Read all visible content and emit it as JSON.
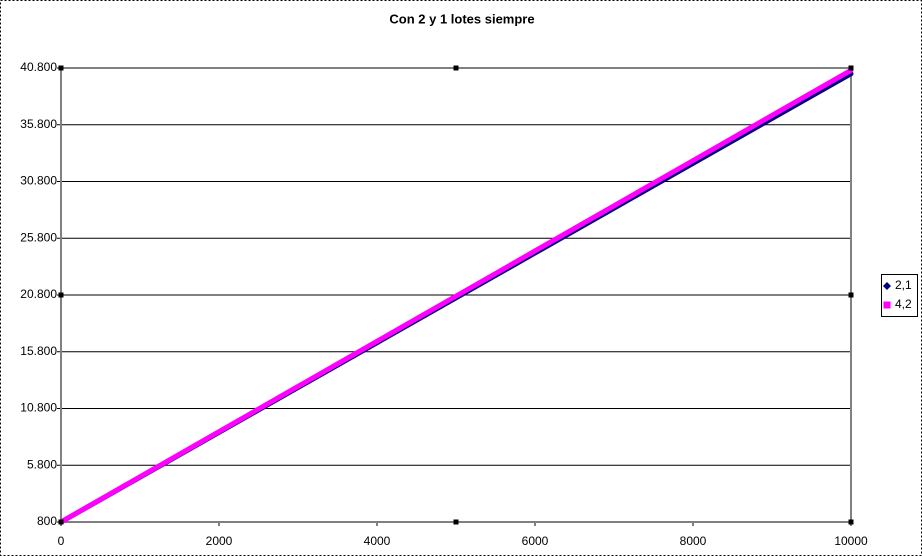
{
  "chart_data": {
    "type": "line",
    "title": "Con 2 y 1 lotes siempre",
    "x": [
      0,
      1000,
      2000,
      3000,
      4000,
      5000,
      6000,
      7000,
      8000,
      9000,
      10000
    ],
    "series": [
      {
        "name": "2,1",
        "color": "#000080",
        "values": [
          800,
          4750,
          8700,
          12650,
          16600,
          20550,
          24500,
          28450,
          32400,
          36350,
          40300
        ]
      },
      {
        "name": "4,2",
        "color": "#ff00ff",
        "values": [
          800,
          4780,
          8760,
          12740,
          16720,
          20700,
          24680,
          28660,
          32640,
          36620,
          40600
        ]
      }
    ],
    "xlim": [
      0,
      10000
    ],
    "xticks": [
      0,
      2000,
      4000,
      6000,
      8000,
      10000
    ],
    "ylim": [
      800,
      40800
    ],
    "yticks": [
      800,
      {
        "value": 5800,
        "label": "5.800"
      },
      {
        "value": 10800,
        "label": "10.800"
      },
      {
        "value": 15800,
        "label": "15.800"
      },
      {
        "value": 20800,
        "label": "20.800"
      },
      {
        "value": 25800,
        "label": "25.800"
      },
      {
        "value": 30800,
        "label": "30.800"
      },
      {
        "value": 35800,
        "label": "35.800"
      },
      {
        "value": 40800,
        "label": "40.800"
      }
    ],
    "grid": true,
    "legend": "right"
  }
}
